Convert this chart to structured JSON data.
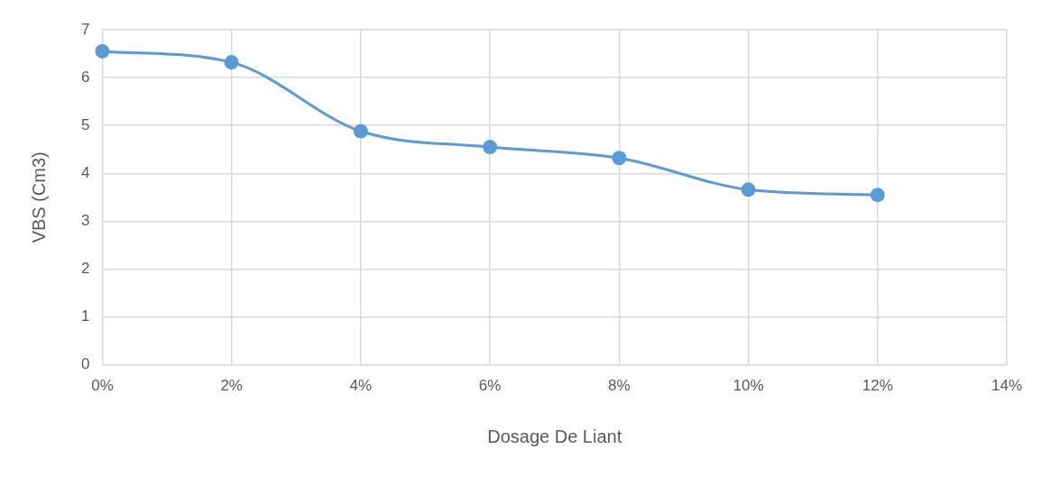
{
  "chart_data": {
    "type": "line",
    "xlabel": "Dosage De Liant",
    "ylabel": "VBS (Cm3)",
    "x": [
      0,
      2,
      4,
      6,
      8,
      10,
      12
    ],
    "series": [
      {
        "color": "#5b9bd5",
        "values": [
          6.55,
          6.32,
          4.88,
          4.55,
          4.32,
          3.66,
          3.55
        ]
      }
    ],
    "xlim": [
      0,
      14
    ],
    "xticks": [
      {
        "value": 0,
        "label": "0%"
      },
      {
        "value": 2,
        "label": "2%"
      },
      {
        "value": 4,
        "label": "4%"
      },
      {
        "value": 6,
        "label": "6%"
      },
      {
        "value": 8,
        "label": "8%"
      },
      {
        "value": 10,
        "label": "10%"
      },
      {
        "value": 12,
        "label": "12%"
      },
      {
        "value": 14,
        "label": "14%"
      }
    ],
    "ylim": [
      0,
      7
    ],
    "yticks": [
      0,
      1,
      2,
      3,
      4,
      5,
      6,
      7
    ],
    "grid": true,
    "legend": false,
    "marker": "circle",
    "line_style": "solid"
  }
}
